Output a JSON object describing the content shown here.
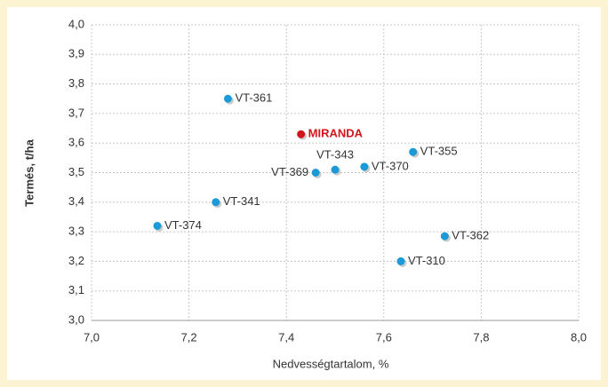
{
  "chart_data": {
    "type": "scatter",
    "x_label": "Nedvességtartalom, %",
    "y_label": "Termés, t/ha",
    "xlim": [
      7.0,
      8.0
    ],
    "ylim": [
      3.0,
      4.0
    ],
    "xticks": [
      {
        "value": 7.0,
        "label": "7,0"
      },
      {
        "value": 7.2,
        "label": "7,2"
      },
      {
        "value": 7.4,
        "label": "7,4"
      },
      {
        "value": 7.6,
        "label": "7,6"
      },
      {
        "value": 7.8,
        "label": "7,8"
      },
      {
        "value": 8.0,
        "label": "8,0"
      }
    ],
    "yticks": [
      {
        "value": 3.0,
        "label": "3,0"
      },
      {
        "value": 3.1,
        "label": "3,1"
      },
      {
        "value": 3.2,
        "label": "3,2"
      },
      {
        "value": 3.3,
        "label": "3,3"
      },
      {
        "value": 3.4,
        "label": "3,4"
      },
      {
        "value": 3.5,
        "label": "3,5"
      },
      {
        "value": 3.6,
        "label": "3,6"
      },
      {
        "value": 3.7,
        "label": "3,7"
      },
      {
        "value": 3.8,
        "label": "3,8"
      },
      {
        "value": 3.9,
        "label": "3,9"
      },
      {
        "value": 4.0,
        "label": "4,0"
      }
    ],
    "grid": true,
    "points": [
      {
        "label": "VT-361",
        "x": 7.28,
        "y": 3.75,
        "color": "#1a9ad6"
      },
      {
        "label": "MIRANDA",
        "x": 7.43,
        "y": 3.63,
        "color": "#d3141c"
      },
      {
        "label": "VT-343",
        "x": 7.5,
        "y": 3.51,
        "color": "#1a9ad6"
      },
      {
        "label": "VT-369",
        "x": 7.46,
        "y": 3.5,
        "color": "#1a9ad6"
      },
      {
        "label": "VT-370",
        "x": 7.56,
        "y": 3.52,
        "color": "#1a9ad6"
      },
      {
        "label": "VT-355",
        "x": 7.66,
        "y": 3.57,
        "color": "#1a9ad6"
      },
      {
        "label": "VT-341",
        "x": 7.255,
        "y": 3.4,
        "color": "#1a9ad6"
      },
      {
        "label": "VT-374",
        "x": 7.135,
        "y": 3.32,
        "color": "#1a9ad6"
      },
      {
        "label": "VT-362",
        "x": 7.725,
        "y": 3.285,
        "color": "#1a9ad6"
      },
      {
        "label": "VT-310",
        "x": 7.635,
        "y": 3.2,
        "color": "#1a9ad6"
      }
    ]
  }
}
